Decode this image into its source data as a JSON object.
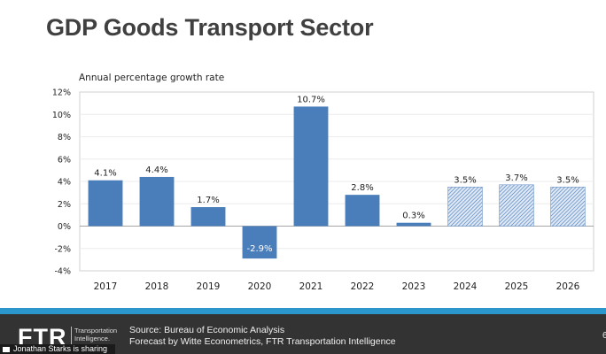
{
  "slide": {
    "title": "GDP Goods Transport Sector",
    "page_number": "6"
  },
  "footer": {
    "logo_text": "FTR",
    "logo_tagline_1": "Transportation",
    "logo_tagline_2": "Intelligence.",
    "source_line_1": "Source: Bureau of Economic Analysis",
    "source_line_2": "Forecast by Witte Econometrics, FTR Transportation Intelligence",
    "sharing_notice": "Jonathan Starks is sharing"
  },
  "colors": {
    "bar": "#4a7ebb",
    "forecast_hatch": "#4a7ebb",
    "stripe": "#2b96cc",
    "footer_bg": "#333333"
  },
  "chart_data": {
    "type": "bar",
    "title": "",
    "subtitle": "Annual percentage growth rate",
    "xlabel": "",
    "ylabel": "",
    "categories": [
      "2017",
      "2018",
      "2019",
      "2020",
      "2021",
      "2022",
      "2023",
      "2024",
      "2025",
      "2026"
    ],
    "values": [
      4.1,
      4.4,
      1.7,
      -2.9,
      10.7,
      2.8,
      0.3,
      3.5,
      3.7,
      3.5
    ],
    "labels": [
      "4.1%",
      "4.4%",
      "1.7%",
      "-2.9%",
      "10.7%",
      "2.8%",
      "0.3%",
      "3.5%",
      "3.7%",
      "3.5%"
    ],
    "forecast": [
      false,
      false,
      false,
      false,
      false,
      false,
      false,
      true,
      true,
      true
    ],
    "ylim": [
      -4,
      12
    ],
    "yticks": [
      12,
      10,
      8,
      6,
      4,
      2,
      0,
      -2,
      -4
    ],
    "ytick_labels": [
      "12%",
      "10%",
      "8%",
      "6%",
      "4%",
      "2%",
      "0%",
      "-2%",
      "-4%"
    ],
    "grid": true,
    "legend": "none"
  }
}
